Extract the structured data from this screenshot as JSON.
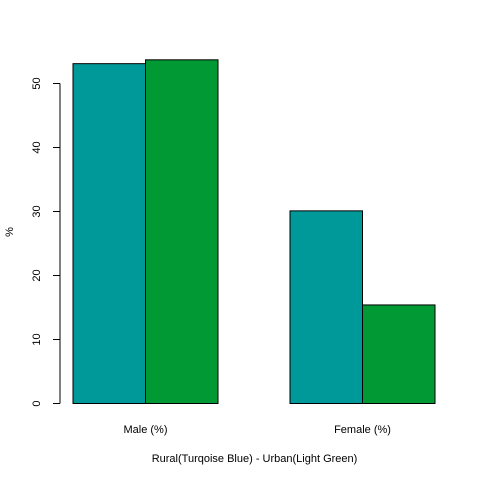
{
  "chart_data": {
    "type": "bar",
    "title": "",
    "xlabel": "Rural(Turqoise Blue) - Urban(Light Green)",
    "ylabel": "%",
    "categories": [
      "Male (%)",
      "Female (%)"
    ],
    "series": [
      {
        "name": "Rural",
        "color": "#009999",
        "values": [
          53.1,
          30.1
        ]
      },
      {
        "name": "Urban",
        "color": "#009933",
        "values": [
          53.7,
          15.4
        ]
      }
    ],
    "yticks": [
      0,
      10,
      20,
      30,
      40,
      50
    ],
    "ylim": [
      0,
      54
    ],
    "grid": false,
    "legend": "none"
  }
}
